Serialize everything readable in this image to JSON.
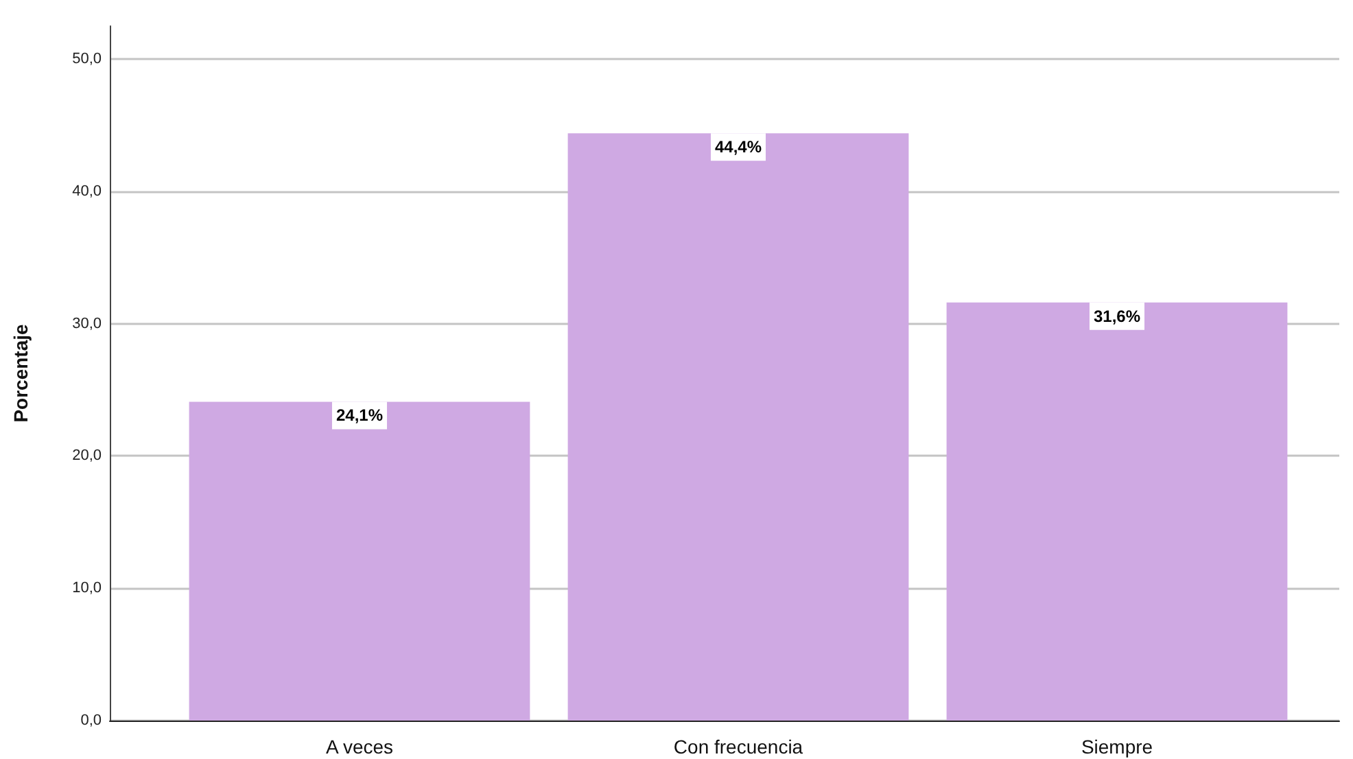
{
  "chart_data": {
    "type": "bar",
    "ylabel": "Porcentaje",
    "categories": [
      "A veces",
      "Con frecuencia",
      "Siempre"
    ],
    "values": [
      24.1,
      44.4,
      31.6
    ],
    "value_labels": [
      "24,1%",
      "44,4%",
      "31,6%"
    ],
    "color": "#cfa9e3",
    "ylim": [
      0,
      52.5
    ],
    "yticks": [
      {
        "value": 0,
        "label": "0,0"
      },
      {
        "value": 10,
        "label": "10,0"
      },
      {
        "value": 20,
        "label": "20,0"
      },
      {
        "value": 30,
        "label": "30,0"
      },
      {
        "value": 40,
        "label": "40,0"
      },
      {
        "value": 50,
        "label": "50,0"
      }
    ],
    "grid": "y"
  }
}
